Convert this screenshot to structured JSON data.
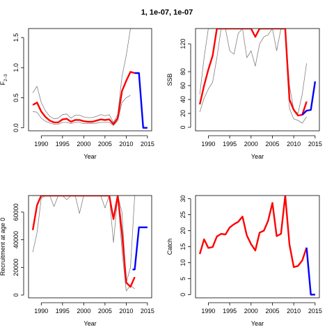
{
  "title": "1, 1e-07, 1e-07",
  "colors": {
    "estimate": "#ff0000",
    "forecast": "#0000ff",
    "ci": "#808080"
  },
  "chart_data": [
    {
      "type": "line",
      "ylabel": "F2-3",
      "ylabel_base": "F",
      "ylabel_sub": "2−3",
      "xlabel": "Year",
      "xlim": [
        1987,
        2016
      ],
      "ylim": [
        -0.05,
        1.65
      ],
      "xticks": [
        1990,
        1995,
        2000,
        2005,
        2010,
        2015
      ],
      "yticks": [
        0.0,
        0.5,
        1.0,
        1.5
      ],
      "ytick_labels": [
        "0.0",
        "0.5",
        "1.0",
        "1.5"
      ],
      "series": [
        {
          "role": "upper",
          "x": [
            1988,
            1989,
            1990,
            1991,
            1992,
            1993,
            1994,
            1995,
            1996,
            1997,
            1998,
            1999,
            2000,
            2001,
            2002,
            2003,
            2004,
            2005,
            2006,
            2007,
            2008,
            2009,
            2010,
            2011
          ],
          "values": [
            0.58,
            0.69,
            0.42,
            0.28,
            0.19,
            0.15,
            0.16,
            0.22,
            0.23,
            0.16,
            0.21,
            0.21,
            0.18,
            0.17,
            0.17,
            0.19,
            0.22,
            0.2,
            0.22,
            0.09,
            0.22,
            0.85,
            1.2,
            1.65
          ]
        },
        {
          "role": "lower",
          "x": [
            1988,
            1989,
            1990,
            1991,
            1992,
            1993,
            1994,
            1995,
            1996,
            1997,
            1998,
            1999,
            2000,
            2001,
            2002,
            2003,
            2004,
            2005,
            2006,
            2007,
            2008,
            2009,
            2010,
            2011
          ],
          "values": [
            0.27,
            0.26,
            0.16,
            0.11,
            0.08,
            0.06,
            0.06,
            0.09,
            0.09,
            0.07,
            0.09,
            0.09,
            0.07,
            0.07,
            0.07,
            0.08,
            0.09,
            0.09,
            0.09,
            0.04,
            0.12,
            0.42,
            0.5,
            0.54
          ]
        },
        {
          "role": "estimate",
          "x": [
            1988,
            1989,
            1990,
            1991,
            1992,
            1993,
            1994,
            1995,
            1996,
            1997,
            1998,
            1999,
            2000,
            2001,
            2002,
            2003,
            2004,
            2005,
            2006,
            2007,
            2008,
            2009,
            2010,
            2011,
            2012
          ],
          "values": [
            0.38,
            0.42,
            0.27,
            0.18,
            0.12,
            0.09,
            0.09,
            0.14,
            0.15,
            0.1,
            0.13,
            0.13,
            0.11,
            0.1,
            0.1,
            0.12,
            0.14,
            0.13,
            0.14,
            0.06,
            0.16,
            0.61,
            0.78,
            0.93,
            0.91
          ]
        },
        {
          "role": "forecast",
          "x": [
            2012,
            2013,
            2014,
            2015
          ],
          "values": [
            0.91,
            0.91,
            0.0,
            0.0
          ]
        }
      ]
    },
    {
      "type": "line",
      "ylabel": "SSB",
      "xlabel": "Year",
      "xlim": [
        1987,
        2016
      ],
      "ylim": [
        -5,
        142
      ],
      "xticks": [
        1990,
        1995,
        2000,
        2005,
        2010,
        2015
      ],
      "yticks": [
        0,
        20,
        40,
        60,
        80,
        120
      ],
      "ytick_labels": [
        "0",
        "20",
        "40",
        "60",
        "80",
        "120"
      ],
      "series": [
        {
          "role": "upper",
          "x": [
            1988,
            1989,
            1990,
            1991,
            1992,
            1993,
            1994,
            1995,
            1996,
            1997,
            1998,
            1999,
            2000,
            2001,
            2002,
            2003,
            2004,
            2005,
            2006,
            2007,
            2008,
            2009,
            2010,
            2011,
            2012,
            2013
          ],
          "values": [
            47,
            100,
            142,
            142,
            142,
            142,
            142,
            110,
            105,
            135,
            142,
            100,
            110,
            88,
            120,
            130,
            133,
            142,
            110,
            142,
            142,
            60,
            25,
            20,
            48,
            92
          ]
        },
        {
          "role": "lower",
          "x": [
            1988,
            1989,
            1990,
            1991,
            1992,
            1993,
            1994,
            1995,
            1996,
            1997,
            1998,
            1999,
            2000,
            2001,
            2002,
            2003,
            2004,
            2005,
            2006,
            2007,
            2008,
            2009,
            2010,
            2011,
            2012,
            2013
          ],
          "values": [
            22,
            42,
            55,
            65,
            100,
            142,
            142,
            142,
            142,
            142,
            142,
            142,
            142,
            142,
            142,
            142,
            142,
            142,
            142,
            142,
            142,
            27,
            12,
            10,
            6,
            15
          ]
        },
        {
          "role": "estimate",
          "x": [
            1988,
            1989,
            1990,
            1991,
            1992,
            1993,
            1994,
            1995,
            1996,
            1997,
            1998,
            1999,
            2000,
            2001,
            2002,
            2003,
            2004,
            2005,
            2006,
            2007,
            2008,
            2009,
            2010,
            2011,
            2012,
            2013
          ],
          "values": [
            33,
            60,
            83,
            103,
            142,
            142,
            142,
            142,
            142,
            142,
            142,
            142,
            142,
            130,
            142,
            142,
            142,
            142,
            142,
            142,
            142,
            40,
            25,
            17,
            18,
            37
          ]
        },
        {
          "role": "forecast",
          "x": [
            2012,
            2013,
            2014,
            2015
          ],
          "values": [
            18,
            24,
            25,
            66
          ]
        }
      ]
    },
    {
      "type": "line",
      "ylabel": "Recruitment at age 0",
      "xlabel": "Year",
      "xlim": [
        1987,
        2016
      ],
      "ylim": [
        -2000,
        72000
      ],
      "xticks": [
        1990,
        1995,
        2000,
        2005,
        2010,
        2015
      ],
      "yticks": [
        0,
        20000,
        40000,
        60000
      ],
      "ytick_labels": [
        "0",
        "20000",
        "40000",
        "60000"
      ],
      "series": [
        {
          "role": "upper",
          "x": [
            1988,
            1989,
            1990,
            1991,
            1992,
            1993,
            1994,
            1995,
            1996,
            1997,
            1998,
            1999,
            2000,
            2001,
            2002,
            2003,
            2004,
            2005,
            2006,
            2007,
            2008,
            2009,
            2010,
            2011,
            2012
          ],
          "values": [
            72000,
            72000,
            72000,
            72000,
            72000,
            72000,
            72000,
            72000,
            72000,
            72000,
            72000,
            72000,
            72000,
            72000,
            72000,
            72000,
            72000,
            72000,
            72000,
            72000,
            72000,
            60000,
            9000,
            20000,
            72000
          ]
        },
        {
          "role": "lower",
          "x": [
            1988,
            1989,
            1990,
            1991,
            1992,
            1993,
            1994,
            1995,
            1996,
            1997,
            1998,
            1999,
            2000,
            2001,
            2002,
            2003,
            2004,
            2005,
            2006,
            2007,
            2008,
            2009,
            2010,
            2011,
            2012
          ],
          "values": [
            31000,
            45000,
            70000,
            72000,
            72000,
            64000,
            72000,
            72000,
            69000,
            72000,
            72000,
            59000,
            72000,
            72000,
            72000,
            72000,
            72000,
            63000,
            72000,
            38000,
            72000,
            32000,
            3000,
            7000,
            4500
          ]
        },
        {
          "role": "estimate",
          "x": [
            1988,
            1989,
            1990,
            1991,
            1992,
            1993,
            1994,
            1995,
            1996,
            1997,
            1998,
            1999,
            2000,
            2001,
            2002,
            2003,
            2004,
            2005,
            2006,
            2007,
            2008,
            2009,
            2010,
            2011,
            2012
          ],
          "values": [
            47000,
            65000,
            72000,
            72000,
            72000,
            72000,
            72000,
            72000,
            72000,
            72000,
            72000,
            72000,
            72000,
            72000,
            72000,
            72000,
            72000,
            72000,
            72000,
            55000,
            72000,
            45000,
            9000,
            6000,
            13000
          ]
        },
        {
          "role": "forecast",
          "x": [
            2011.5,
            2012,
            2013,
            2014,
            2015
          ],
          "values": [
            18500,
            18500,
            49000,
            49000,
            49000
          ]
        }
      ]
    },
    {
      "type": "line",
      "ylabel": "Catch",
      "xlabel": "Year",
      "xlim": [
        1987,
        2016
      ],
      "ylim": [
        -1,
        31
      ],
      "xticks": [
        1990,
        1995,
        2000,
        2005,
        2010,
        2015
      ],
      "yticks": [
        0,
        5,
        10,
        15,
        20,
        25,
        30
      ],
      "ytick_labels": [
        "0",
        "5",
        "10",
        "15",
        "20",
        "25",
        "30"
      ],
      "series": [
        {
          "role": "estimate",
          "x": [
            1988,
            1989,
            1990,
            1991,
            1992,
            1993,
            1994,
            1995,
            1996,
            1997,
            1998,
            1999,
            2000,
            2001,
            2002,
            2003,
            2004,
            2005,
            2006,
            2007,
            2008,
            2009,
            2010,
            2011,
            2012,
            2013
          ],
          "values": [
            12.7,
            17.3,
            14.6,
            14.9,
            18.2,
            19,
            18.8,
            21,
            22,
            22.8,
            24.4,
            18.5,
            15.8,
            13.8,
            19.4,
            20,
            23.1,
            28.7,
            18.3,
            19,
            31,
            15.7,
            8.6,
            9,
            10.7,
            14.7
          ]
        },
        {
          "role": "forecast",
          "x": [
            2013,
            2014,
            2015
          ],
          "values": [
            14.7,
            0,
            0
          ]
        }
      ]
    }
  ]
}
